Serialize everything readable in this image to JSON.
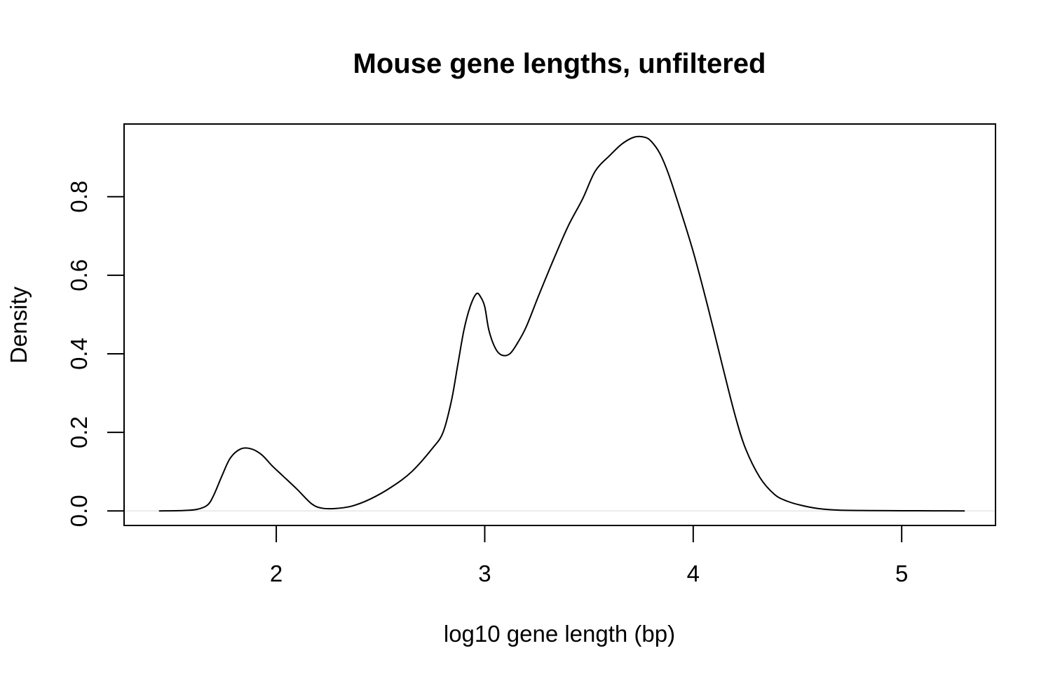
{
  "chart_data": {
    "type": "line",
    "title": "Mouse gene lengths, unfiltered",
    "xlabel": "log10 gene length (bp)",
    "ylabel": "Density",
    "xlim": [
      1.27,
      5.45
    ],
    "ylim": [
      -0.037,
      0.985
    ],
    "x_ticks": [
      2,
      3,
      4,
      5
    ],
    "x_tick_labels": [
      "2",
      "3",
      "4",
      "5"
    ],
    "y_ticks": [
      0.0,
      0.2,
      0.4,
      0.6,
      0.8
    ],
    "y_tick_labels": [
      "0.0",
      "0.2",
      "0.4",
      "0.6",
      "0.8"
    ],
    "baseline": 0,
    "grid": false,
    "legend": "none",
    "line_color": "#000000",
    "baseline_color": "#e6e6e6",
    "series": [
      {
        "x": [
          1.44,
          1.55,
          1.62,
          1.67,
          1.7,
          1.74,
          1.78,
          1.83,
          1.88,
          1.93,
          1.98,
          2.03,
          2.1,
          2.17,
          2.22,
          2.28,
          2.36,
          2.45,
          2.55,
          2.65,
          2.75,
          2.8,
          2.84,
          2.87,
          2.9,
          2.93,
          2.96,
          2.98,
          3.0,
          3.02,
          3.05,
          3.08,
          3.12,
          3.16,
          3.2,
          3.26,
          3.33,
          3.4,
          3.47,
          3.53,
          3.6,
          3.66,
          3.72,
          3.77,
          3.8,
          3.84,
          3.88,
          3.93,
          4.0,
          4.07,
          4.14,
          4.2,
          4.25,
          4.32,
          4.39,
          4.45,
          4.52,
          4.6,
          4.7,
          4.85,
          5.0,
          5.15,
          5.3
        ],
        "y": [
          0.0,
          0.001,
          0.004,
          0.015,
          0.04,
          0.09,
          0.135,
          0.158,
          0.158,
          0.143,
          0.115,
          0.09,
          0.055,
          0.018,
          0.007,
          0.006,
          0.012,
          0.03,
          0.06,
          0.1,
          0.16,
          0.2,
          0.28,
          0.37,
          0.46,
          0.52,
          0.553,
          0.545,
          0.52,
          0.46,
          0.415,
          0.397,
          0.4,
          0.43,
          0.47,
          0.55,
          0.64,
          0.725,
          0.795,
          0.865,
          0.905,
          0.935,
          0.952,
          0.951,
          0.94,
          0.91,
          0.86,
          0.78,
          0.66,
          0.52,
          0.37,
          0.245,
          0.16,
          0.085,
          0.042,
          0.025,
          0.014,
          0.006,
          0.002,
          0.001,
          0.0005,
          0.0003,
          0.0
        ]
      }
    ]
  }
}
